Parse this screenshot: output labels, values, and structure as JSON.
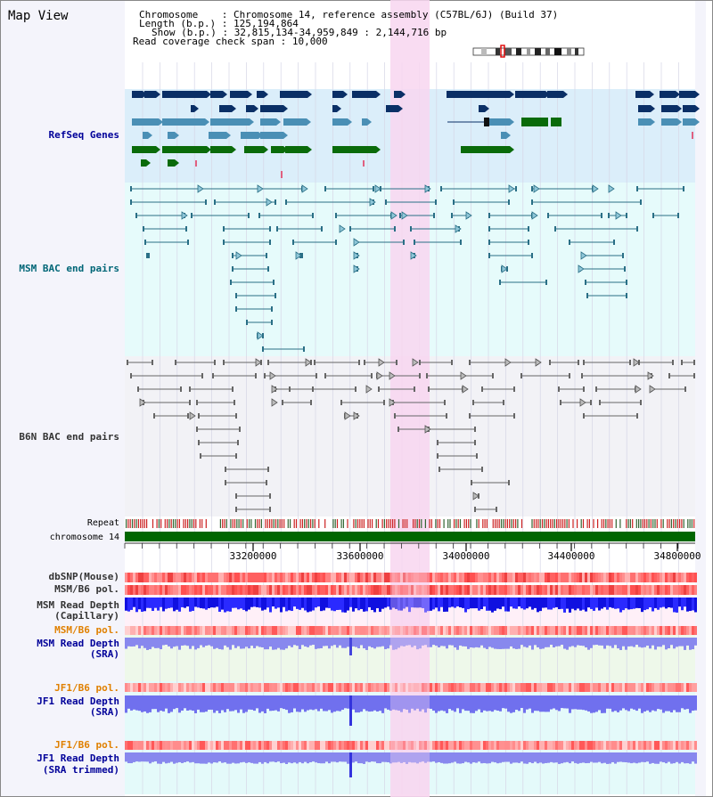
{
  "panel": {
    "title": "Map View"
  },
  "header": {
    "chromosome_label": "Chromosome",
    "chromosome_value": "Chromosome 14, reference assembly (C57BL/6J) (Build 37)",
    "length_label": "Length (b.p.)",
    "length_value": "125,194,864",
    "show_label": "Show (b.p.)",
    "show_value": "32,815,134-34,959,849 : 2,144,716 bp",
    "coverage_label": "Read coverage check span",
    "coverage_value": "10,000"
  },
  "tracks": {
    "refseq": "RefSeq Genes",
    "msm_bac": "MSM BAC end pairs",
    "b6n_bac": "B6N BAC end pairs",
    "repeat": "Repeat",
    "chromosome": "chromosome 14",
    "dbsnp": "dbSNP(Mouse)",
    "msm_b6_pol": "MSM/B6 pol.",
    "msm_depth_cap": "MSM Read Depth",
    "msm_depth_cap_sub": "(Capillary)",
    "msm_b6_pol2": "MSM/B6 pol.",
    "msm_depth_sra": "MSM Read Depth",
    "msm_depth_sra_sub": "(SRA)",
    "jf1_pol": "JF1/B6 pol.",
    "jf1_depth": "JF1 Read Depth",
    "jf1_depth_sub": "(SRA)",
    "jf1_pol2": "JF1/B6 pol.",
    "jf1_depth2": "JF1 Read Depth",
    "jf1_depth2_sub": "(SRA trimmed)"
  },
  "axis": {
    "ticks": [
      "33200000",
      "33600000",
      "34000000",
      "34400000",
      "34800000"
    ]
  },
  "colors": {
    "panel_bg": "#f4f4fb",
    "refseq_bg": "#dbeefa",
    "msm_bg": "#e6fbfb",
    "b6n_bg": "#f2f2f6",
    "highlight": "#f8d6f0",
    "gene_navy": "#0a2f66",
    "gene_steel": "#4a8fb5",
    "gene_green": "#0a6b0a",
    "msm_pair": "#2a6f86",
    "b6n_pair": "#666666",
    "chrom_green": "#006600",
    "label_blue": "#000099",
    "label_teal": "#006677",
    "label_orange": "#e08000"
  }
}
